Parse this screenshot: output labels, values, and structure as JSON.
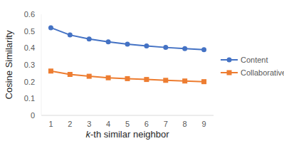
{
  "chart_data": {
    "type": "line",
    "x_label": "k-th similar neighbor",
    "y_label": "Cosine Similarity",
    "categories": [
      "1",
      "2",
      "3",
      "4",
      "5",
      "6",
      "7",
      "8",
      "9"
    ],
    "series": [
      {
        "name": "Content",
        "color": "#4472c4",
        "marker": "circle",
        "line_style": "solid",
        "values": [
          0.52,
          0.477,
          0.453,
          0.436,
          0.423,
          0.412,
          0.403,
          0.396,
          0.39
        ]
      },
      {
        "name": "Collaborative",
        "color": "#ed7d31",
        "marker": "square",
        "line_style": "solid",
        "values": [
          0.263,
          0.243,
          0.232,
          0.223,
          0.218,
          0.213,
          0.208,
          0.204,
          0.2
        ]
      }
    ],
    "ylim": [
      0,
      0.6
    ],
    "yticks": [
      0,
      0.1,
      0.2,
      0.3,
      0.4,
      0.5,
      0.6
    ],
    "grid": false,
    "legend": "right"
  }
}
